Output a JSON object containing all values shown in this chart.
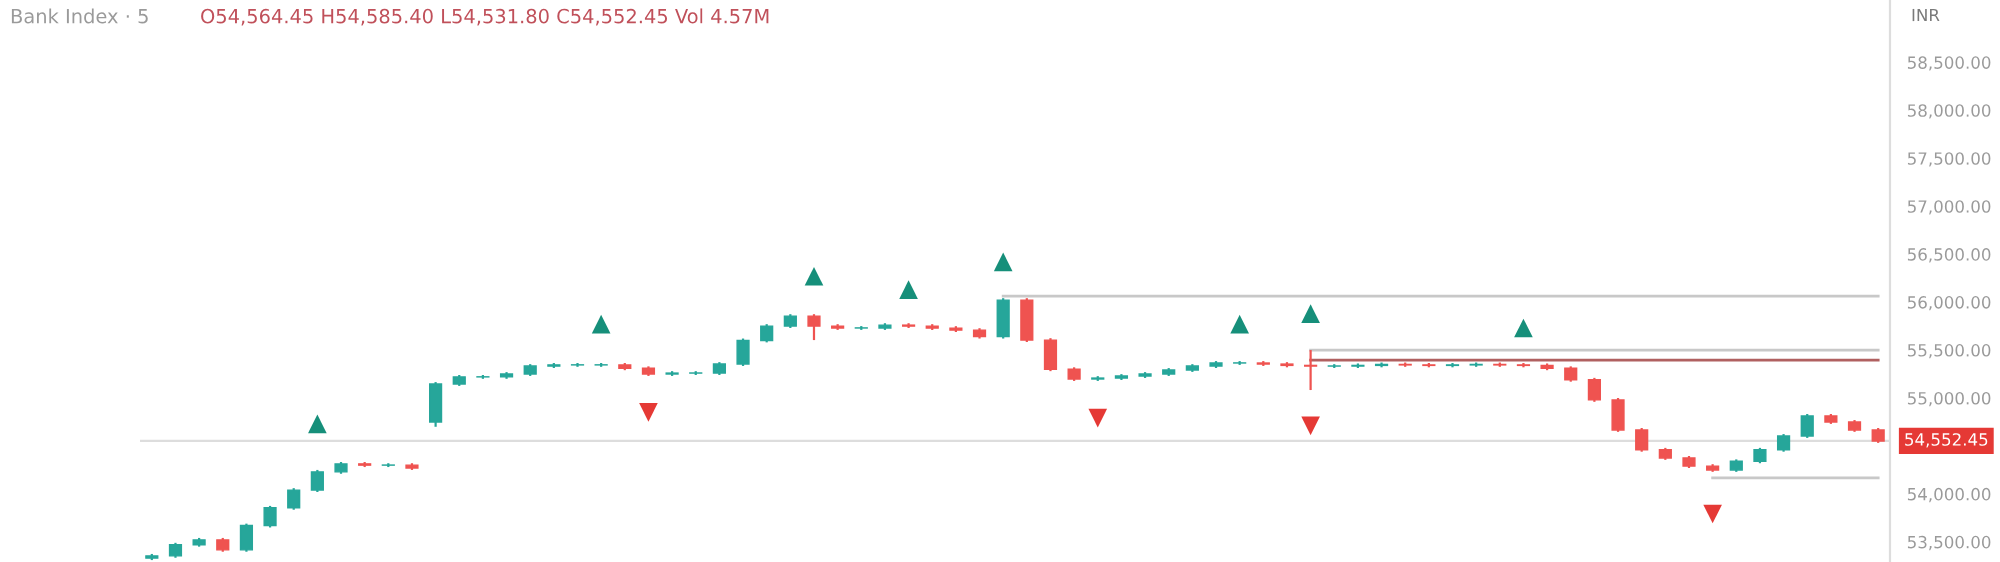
{
  "chart_data": {
    "type": "candlestick",
    "title": "Bank Index · 5",
    "ylabel": "INR",
    "annotations": [
      "O54,564.45 H54,585.40 L54,531.80 C54,552.45 Vol 4.57M"
    ],
    "categories": [
      null,
      null,
      null,
      null,
      null,
      null,
      null,
      null,
      null,
      null,
      null,
      null,
      null,
      null,
      null,
      null,
      null,
      null,
      null,
      null,
      null,
      null,
      null,
      null,
      null,
      null,
      null,
      null,
      null,
      null,
      null,
      null,
      null,
      null,
      null,
      null,
      null,
      null,
      null,
      null,
      null,
      null,
      null,
      null,
      null,
      null,
      null,
      null,
      null,
      null,
      null,
      null,
      null,
      null,
      null,
      null,
      null,
      null,
      null,
      null,
      null,
      null,
      null,
      null,
      null,
      null,
      null,
      null,
      null,
      null,
      null,
      null,
      null,
      null
    ],
    "ohlc": [
      [
        53330,
        53374,
        53310,
        53354
      ],
      [
        53354,
        53490,
        53334,
        53470
      ],
      [
        53470,
        53541,
        53450,
        53521
      ],
      [
        53521,
        53541,
        53397,
        53417
      ],
      [
        53417,
        53690,
        53397,
        53670
      ],
      [
        53670,
        53875,
        53650,
        53855
      ],
      [
        53855,
        54060,
        53835,
        54040
      ],
      [
        54040,
        54250,
        54020,
        54230
      ],
      [
        54230,
        54333,
        54210,
        54313
      ],
      [
        54313,
        54333,
        54280,
        54300
      ],
      [
        54300,
        54320,
        54280,
        54300
      ],
      [
        54300,
        54320,
        54250,
        54270
      ],
      [
        54750,
        55166,
        54700,
        55146
      ],
      [
        55146,
        55240,
        55126,
        55220
      ],
      [
        55220,
        55240,
        55200,
        55220
      ],
      [
        55220,
        55270,
        55200,
        55250
      ],
      [
        55250,
        55353,
        55230,
        55333
      ],
      [
        55333,
        55365,
        55313,
        55345
      ],
      [
        55345,
        55365,
        55325,
        55345
      ],
      [
        55345,
        55365,
        55325,
        55345
      ],
      [
        55345,
        55365,
        55290,
        55310
      ],
      [
        55310,
        55330,
        55230,
        55250
      ],
      [
        55250,
        55280,
        55230,
        55260
      ],
      [
        55260,
        55280,
        55240,
        55260
      ],
      [
        55260,
        55374,
        55240,
        55354
      ],
      [
        55354,
        55620,
        55334,
        55600
      ],
      [
        55600,
        55770,
        55580,
        55750
      ],
      [
        55750,
        55874,
        55730,
        55854
      ],
      [
        55854,
        55874,
        55604,
        55750
      ],
      [
        55750,
        55770,
        55710,
        55730
      ],
      [
        55730,
        55750,
        55710,
        55730
      ],
      [
        55730,
        55780,
        55710,
        55760
      ],
      [
        55760,
        55780,
        55730,
        55750
      ],
      [
        55750,
        55770,
        55709,
        55729
      ],
      [
        55729,
        55749,
        55688,
        55708
      ],
      [
        55708,
        55728,
        55620,
        55640
      ],
      [
        55640,
        56041,
        55620,
        56021
      ],
      [
        56021,
        56041,
        55584,
        55604
      ],
      [
        55604,
        55624,
        55280,
        55300
      ],
      [
        55300,
        55320,
        55178,
        55198
      ],
      [
        55198,
        55228,
        55178,
        55208
      ],
      [
        55208,
        55249,
        55188,
        55229
      ],
      [
        55229,
        55270,
        55209,
        55250
      ],
      [
        55250,
        55312,
        55230,
        55292
      ],
      [
        55292,
        55353,
        55272,
        55333
      ],
      [
        55333,
        55385,
        55313,
        55365
      ],
      [
        55365,
        55385,
        55345,
        55365
      ],
      [
        55365,
        55385,
        55334,
        55354
      ],
      [
        55354,
        55374,
        55320,
        55340
      ],
      [
        55340,
        55500,
        55083,
        55333
      ],
      [
        55333,
        55353,
        55313,
        55333
      ],
      [
        55333,
        55360,
        55313,
        55340
      ],
      [
        55340,
        55370,
        55320,
        55350
      ],
      [
        55350,
        55370,
        55325,
        55345
      ],
      [
        55345,
        55365,
        55320,
        55340
      ],
      [
        55340,
        55365,
        55320,
        55345
      ],
      [
        55345,
        55370,
        55325,
        55350
      ],
      [
        55350,
        55370,
        55325,
        55345
      ],
      [
        55345,
        55365,
        55320,
        55340
      ],
      [
        55340,
        55360,
        55290,
        55310
      ],
      [
        55310,
        55330,
        55170,
        55190
      ],
      [
        55190,
        55210,
        54960,
        54980
      ],
      [
        54980,
        55000,
        54647,
        54667
      ],
      [
        54667,
        54687,
        54440,
        54460
      ],
      [
        54460,
        54480,
        54355,
        54375
      ],
      [
        54375,
        54395,
        54270,
        54290
      ],
      [
        54290,
        54310,
        54230,
        54250
      ],
      [
        54250,
        54360,
        54230,
        54340
      ],
      [
        54340,
        54480,
        54320,
        54460
      ],
      [
        54460,
        54624,
        54440,
        54604
      ],
      [
        54604,
        54833,
        54584,
        54813
      ],
      [
        54813,
        54833,
        54730,
        54750
      ],
      [
        54750,
        54770,
        54647,
        54667
      ],
      [
        54667,
        54687,
        54532,
        54552
      ]
    ],
    "colors": [
      "#26a69a",
      "#26a69a",
      "#26a69a",
      "#ef5350",
      "#26a69a",
      "#26a69a",
      "#26a69a",
      "#26a69a",
      "#26a69a",
      "#ef5350",
      "#26a69a",
      "#ef5350",
      "#26a69a",
      "#26a69a",
      "#26a69a",
      "#26a69a",
      "#26a69a",
      "#26a69a",
      "#26a69a",
      "#26a69a",
      "#ef5350",
      "#ef5350",
      "#26a69a",
      "#26a69a",
      "#26a69a",
      "#26a69a",
      "#26a69a",
      "#26a69a",
      "#ef5350",
      "#ef5350",
      "#26a69a",
      "#26a69a",
      "#ef5350",
      "#ef5350",
      "#ef5350",
      "#ef5350",
      "#26a69a",
      "#ef5350",
      "#ef5350",
      "#ef5350",
      "#26a69a",
      "#26a69a",
      "#26a69a",
      "#26a69a",
      "#26a69a",
      "#26a69a",
      "#26a69a",
      "#ef5350",
      "#ef5350",
      "#ef5350",
      "#26a69a",
      "#26a69a",
      "#26a69a",
      "#ef5350",
      "#ef5350",
      "#26a69a",
      "#26a69a",
      "#ef5350",
      "#ef5350",
      "#ef5350",
      "#ef5350",
      "#ef5350",
      "#ef5350",
      "#ef5350",
      "#ef5350",
      "#ef5350",
      "#ef5350",
      "#26a69a",
      "#26a69a",
      "#26a69a",
      "#26a69a",
      "#ef5350",
      "#ef5350",
      "#ef5350"
    ],
    "series": [
      {
        "type": "scatter",
        "marker": "triangle",
        "color": "#168f7a",
        "values": [
          null,
          null,
          null,
          null,
          null,
          null,
          null,
          54730,
          null,
          null,
          null,
          null,
          null,
          null,
          null,
          null,
          null,
          null,
          null,
          55770,
          null,
          null,
          null,
          null,
          null,
          null,
          null,
          null,
          56270,
          null,
          null,
          null,
          56130,
          null,
          null,
          null,
          56420,
          null,
          null,
          null,
          null,
          null,
          null,
          null,
          null,
          null,
          55770,
          null,
          null,
          55880,
          null,
          null,
          null,
          null,
          null,
          null,
          null,
          null,
          55730,
          null,
          null,
          null,
          null,
          null,
          null,
          null,
          null,
          null,
          null,
          null,
          null,
          null,
          null,
          null
        ]
      },
      {
        "type": "scatter",
        "marker": "triangle_down",
        "color": "#e53935",
        "values": [
          null,
          null,
          null,
          null,
          null,
          null,
          null,
          null,
          null,
          null,
          null,
          null,
          null,
          null,
          null,
          null,
          null,
          null,
          null,
          null,
          null,
          54850,
          null,
          null,
          null,
          null,
          null,
          null,
          null,
          null,
          null,
          null,
          null,
          null,
          null,
          null,
          null,
          null,
          null,
          null,
          54790,
          null,
          null,
          null,
          null,
          null,
          null,
          null,
          null,
          54710,
          null,
          null,
          null,
          null,
          null,
          null,
          null,
          null,
          null,
          null,
          null,
          null,
          null,
          null,
          null,
          null,
          53790,
          null,
          null,
          null,
          null,
          null,
          null,
          null
        ]
      },
      {
        "type": "line",
        "color": "#c8c8c8",
        "values": [
          null,
          null,
          null,
          null,
          null,
          null,
          null,
          null,
          null,
          null,
          null,
          null,
          null,
          null,
          null,
          null,
          null,
          null,
          null,
          null,
          null,
          null,
          null,
          null,
          null,
          null,
          null,
          null,
          null,
          null,
          null,
          null,
          null,
          null,
          null,
          null,
          56063,
          56063,
          56063,
          56063,
          56063,
          56063,
          56063,
          56063,
          56063,
          56063,
          56063,
          56063,
          56063,
          56063,
          56063,
          56063,
          56063,
          56063,
          56063,
          56063,
          56063,
          56063,
          56063,
          56063,
          56063,
          56063,
          56063,
          56063,
          56063,
          56063,
          56063,
          56063,
          56063,
          56063,
          56063,
          56063,
          56063,
          56063
        ]
      },
      {
        "type": "line",
        "color": "#c8c8c8",
        "values": [
          null,
          null,
          null,
          null,
          null,
          null,
          null,
          null,
          null,
          null,
          null,
          null,
          null,
          null,
          null,
          null,
          null,
          null,
          null,
          null,
          null,
          null,
          null,
          null,
          null,
          null,
          null,
          null,
          null,
          null,
          null,
          null,
          null,
          null,
          null,
          null,
          null,
          null,
          null,
          null,
          null,
          null,
          null,
          null,
          null,
          null,
          null,
          null,
          null,
          55500,
          55500,
          55500,
          55500,
          55500,
          55500,
          55500,
          55500,
          55500,
          55500,
          55500,
          55500,
          55500,
          55500,
          55500,
          55500,
          55500,
          55500,
          55500,
          55500,
          55500,
          55500,
          55500,
          55500,
          55500
        ]
      },
      {
        "type": "line",
        "color": "#b06060",
        "values": [
          null,
          null,
          null,
          null,
          null,
          null,
          null,
          null,
          null,
          null,
          null,
          null,
          null,
          null,
          null,
          null,
          null,
          null,
          null,
          null,
          null,
          null,
          null,
          null,
          null,
          null,
          null,
          null,
          null,
          null,
          null,
          null,
          null,
          null,
          null,
          null,
          null,
          null,
          null,
          null,
          null,
          null,
          null,
          null,
          null,
          null,
          null,
          null,
          null,
          55396,
          55396,
          55396,
          55396,
          55396,
          55396,
          55396,
          55396,
          55396,
          55396,
          55396,
          55396,
          55396,
          55396,
          55396,
          55396,
          55396,
          55396,
          55396,
          55396,
          55396,
          55396,
          55396,
          55396,
          55396
        ]
      },
      {
        "type": "line",
        "color": "#c8c8c8",
        "values": [
          null,
          null,
          null,
          null,
          null,
          null,
          null,
          null,
          null,
          null,
          null,
          null,
          null,
          null,
          null,
          null,
          null,
          null,
          null,
          null,
          null,
          null,
          null,
          null,
          null,
          null,
          null,
          null,
          null,
          null,
          null,
          null,
          null,
          null,
          null,
          null,
          null,
          null,
          null,
          null,
          null,
          null,
          null,
          null,
          null,
          null,
          null,
          null,
          null,
          null,
          null,
          null,
          null,
          null,
          null,
          null,
          null,
          null,
          null,
          null,
          null,
          null,
          null,
          null,
          null,
          null,
          54167,
          54167,
          54167,
          54167,
          54167,
          54167,
          54167,
          54167
        ]
      }
    ],
    "ref_lines": [
      {
        "axis": "y",
        "value": 54552.45,
        "label": "54,552.45",
        "color": "#dddddd"
      }
    ],
    "ylim": [
      53290,
      59150
    ],
    "yticks": [
      {
        "value": 53500,
        "label": "53,500.00"
      },
      {
        "value": 54000,
        "label": "54,000.00"
      },
      {
        "value": 55000,
        "label": "55,000.00"
      },
      {
        "value": 55500,
        "label": "55,500.00"
      },
      {
        "value": 56000,
        "label": "56,000.00"
      },
      {
        "value": 56500,
        "label": "56,500.00"
      },
      {
        "value": 57000,
        "label": "57,000.00"
      },
      {
        "value": 57500,
        "label": "57,500.00"
      },
      {
        "value": 58000,
        "label": "58,000.00"
      },
      {
        "value": 58500,
        "label": "58,500.00"
      }
    ],
    "tick_labels": "y",
    "grid": false,
    "legend": false
  }
}
